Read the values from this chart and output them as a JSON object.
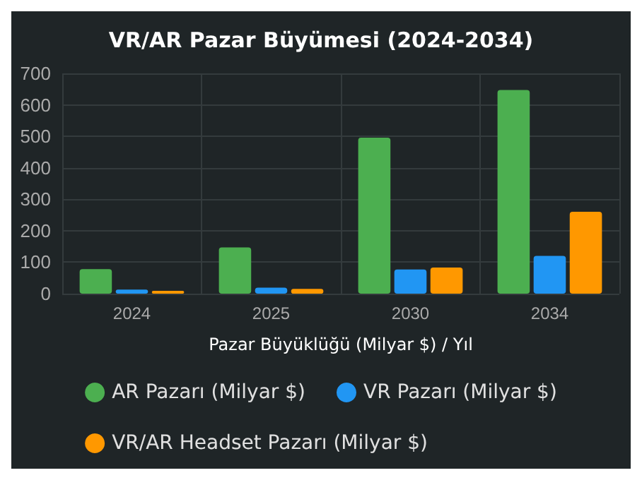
{
  "chart_data": {
    "type": "bar",
    "title": "VR/AR Pazar Büyümesi (2024-2034)",
    "xlabel": "Pazar Büyüklüğü (Milyar $) / Yıl",
    "categories": [
      "2024",
      "2025",
      "2030",
      "2034"
    ],
    "series": [
      {
        "name": "AR Pazarı (Milyar $)",
        "color": "#4caf50",
        "values": [
          78,
          147,
          496,
          647
        ]
      },
      {
        "name": "VR Pazarı (Milyar $)",
        "color": "#2196f3",
        "values": [
          13,
          19,
          77,
          120
        ]
      },
      {
        "name": "VR/AR Headset Pazarı (Milyar $)",
        "color": "#ff9800",
        "values": [
          9,
          15,
          83,
          260
        ]
      }
    ],
    "ylim": [
      0,
      700
    ],
    "yticks": [
      0,
      100,
      200,
      300,
      400,
      500,
      600,
      700
    ],
    "grid": true,
    "legend": "bottom"
  }
}
